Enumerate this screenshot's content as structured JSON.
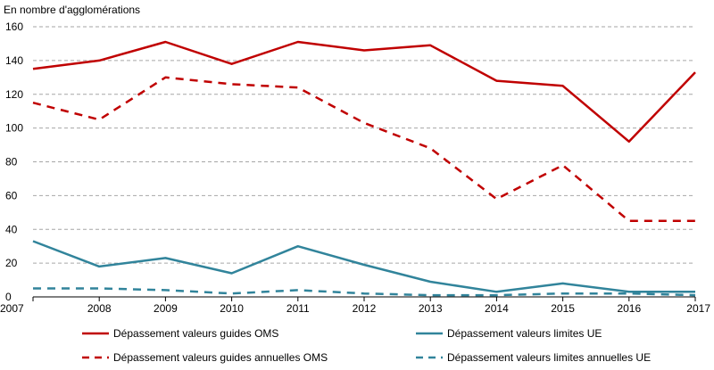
{
  "chart_data": {
    "type": "line",
    "unit_label": "En nombre  d'agglomérations",
    "x": [
      "2007",
      "2008",
      "2009",
      "2010",
      "2011",
      "2012",
      "2013",
      "2014",
      "2015",
      "2016",
      "2017"
    ],
    "ylim": [
      0,
      160
    ],
    "yticks": [
      0,
      20,
      40,
      60,
      80,
      100,
      120,
      140,
      160
    ],
    "grid": true,
    "legend_position": "bottom",
    "series": [
      {
        "name": "Dépassement valeurs guides OMS",
        "color": "#c00000",
        "style": "solid",
        "values": [
          135,
          140,
          151,
          138,
          151,
          146,
          149,
          128,
          125,
          92,
          133
        ]
      },
      {
        "name": "Dépassement valeurs limites UE",
        "color": "#31849b",
        "style": "solid",
        "values": [
          33,
          18,
          23,
          14,
          30,
          19,
          9,
          3,
          8,
          3,
          3
        ]
      },
      {
        "name": "Dépassement valeurs guides annuelles OMS",
        "color": "#c00000",
        "style": "dashed",
        "values": [
          115,
          105,
          130,
          126,
          124,
          103,
          88,
          58,
          78,
          45,
          45
        ]
      },
      {
        "name": "Dépassement valeurs limites annuelles UE",
        "color": "#31849b",
        "style": "dashed",
        "values": [
          5,
          5,
          4,
          2,
          4,
          2,
          1,
          1,
          2,
          2,
          1
        ]
      }
    ]
  }
}
